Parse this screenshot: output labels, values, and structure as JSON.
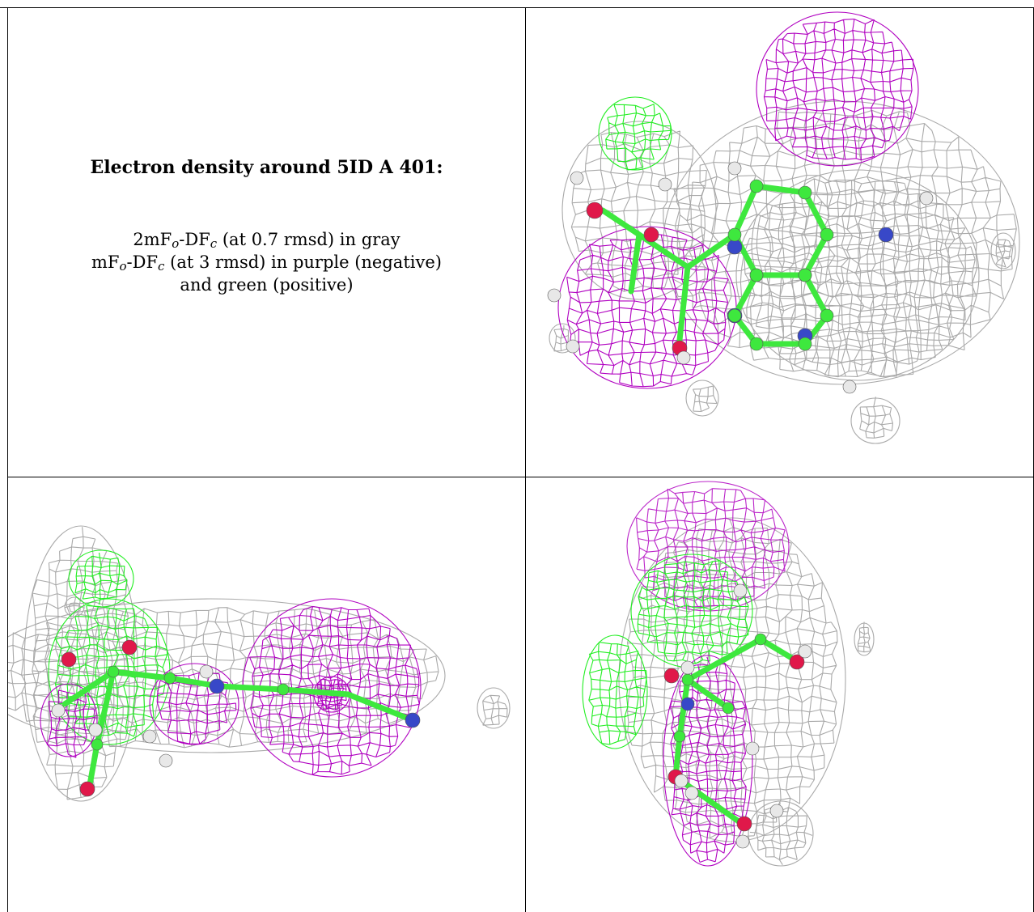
{
  "caption": {
    "title": "Electron density around 5ID A 401:",
    "line1": {
      "a": "2mF",
      "sub_o": "o",
      "b": "-DF",
      "sub_c": "c",
      "tail": " (at 0.7 rmsd) in gray"
    },
    "line2": {
      "a": "mF",
      "sub_o": "o",
      "b": "-DF",
      "sub_c": "c",
      "tail": " (at 3 rmsd) in purple (negative)"
    },
    "line3": "and green (positive)"
  },
  "colors": {
    "gray_mesh": "#a9a9a9",
    "purple_mesh": "#b000c0",
    "green_mesh": "#22ee22",
    "carbon": "#3ee83e",
    "nitrogen": "#3848c8",
    "oxygen": "#e0184a",
    "hydrogen": "#e8e8e8"
  },
  "panels": [
    {
      "name": "view-top-right",
      "type": "molecule-render"
    },
    {
      "name": "view-bottom-left",
      "type": "molecule-render"
    },
    {
      "name": "view-bottom-right",
      "type": "molecule-render"
    }
  ]
}
